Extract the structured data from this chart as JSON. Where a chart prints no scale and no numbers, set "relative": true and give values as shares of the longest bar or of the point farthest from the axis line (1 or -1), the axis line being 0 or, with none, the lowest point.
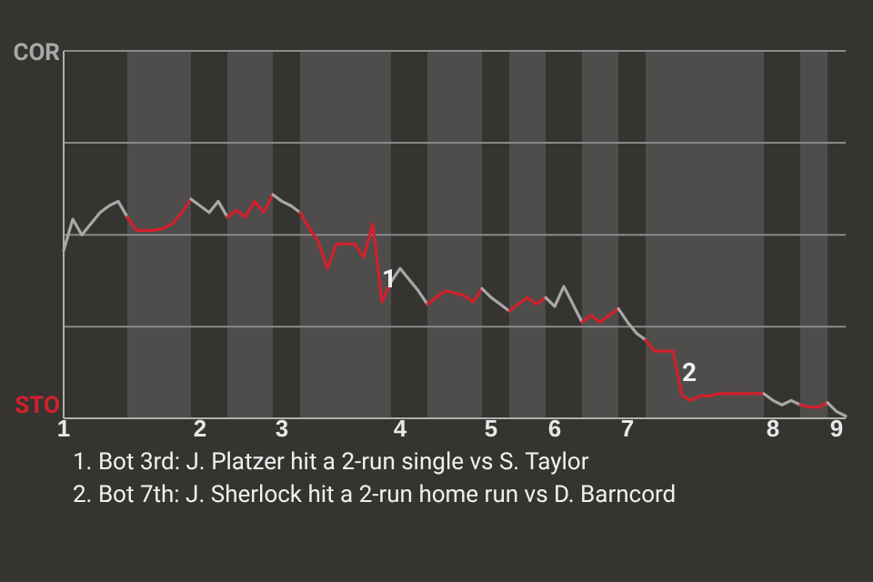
{
  "chart_data": {
    "type": "line",
    "relative": true,
    "categories": [
      "1",
      null,
      null,
      null,
      null,
      null,
      null,
      null,
      null,
      null,
      null,
      null,
      null,
      null,
      null,
      "2",
      null,
      null,
      null,
      null,
      null,
      null,
      null,
      null,
      "3",
      null,
      null,
      null,
      null,
      null,
      null,
      null,
      null,
      null,
      null,
      null,
      null,
      "4",
      null,
      null,
      null,
      null,
      null,
      null,
      null,
      null,
      null,
      "5",
      null,
      null,
      null,
      null,
      null,
      null,
      "6",
      null,
      null,
      null,
      null,
      null,
      null,
      null,
      "7",
      null,
      null,
      null,
      null,
      null,
      null,
      null,
      null,
      null,
      null,
      null,
      null,
      null,
      null,
      null,
      "8",
      null,
      null,
      null,
      null,
      null,
      null,
      "9",
      null
    ],
    "ref_lines": [
      {
        "axis": "y",
        "value": 0.41,
        "color": "#8a8a8a"
      },
      {
        "axis": "y",
        "value": 0.82,
        "color": "#8a8a8a"
      }
    ],
    "marker": "none",
    "line_style": "solid",
    "series": [
      {
        "color": "#a8a8a8",
        "values": [
          0.75,
          0.89,
          0.82,
          0.87,
          0.92,
          0.95,
          0.97,
          0.9,
          null,
          null,
          null,
          null,
          null,
          null,
          null,
          null,
          null,
          null,
          null,
          null,
          null,
          null,
          null,
          null,
          null,
          null,
          null,
          null,
          null,
          null,
          null,
          null,
          null,
          null,
          null,
          null,
          null,
          null,
          null,
          null,
          null,
          null,
          null,
          null,
          null,
          null,
          null,
          null,
          null,
          null,
          null,
          null,
          null,
          null,
          null,
          null,
          null,
          null,
          null,
          null,
          null,
          null,
          null,
          null,
          null,
          null,
          null,
          null,
          null,
          null,
          null,
          null,
          null,
          null,
          null,
          null,
          null,
          null,
          null,
          null,
          null,
          null,
          null,
          null,
          null,
          null,
          null
        ]
      },
      {
        "color": "#d2202c",
        "values": [
          null,
          null,
          null,
          null,
          null,
          null,
          null,
          0.9,
          0.84,
          0.84,
          0.84,
          0.85,
          0.87,
          0.92,
          0.98,
          null,
          null,
          null,
          null,
          null,
          null,
          null,
          null,
          null,
          null,
          null,
          null,
          null,
          null,
          null,
          null,
          null,
          null,
          null,
          null,
          null,
          null,
          null,
          null,
          null,
          null,
          null,
          null,
          null,
          null,
          null,
          null,
          null,
          null,
          null,
          null,
          null,
          null,
          null,
          null,
          null,
          null,
          null,
          null,
          null,
          null,
          null,
          null,
          null,
          null,
          null,
          null,
          null,
          null,
          null,
          null,
          null,
          null,
          null,
          null,
          null,
          null,
          null,
          null,
          null,
          null,
          null,
          null,
          null,
          null,
          null,
          null
        ]
      },
      {
        "color": "#a8a8a8",
        "values": [
          null,
          null,
          null,
          null,
          null,
          null,
          null,
          null,
          null,
          null,
          null,
          null,
          null,
          null,
          0.98,
          0.95,
          0.92,
          0.97,
          0.9,
          null,
          null,
          null,
          null,
          null,
          null,
          null,
          null,
          null,
          null,
          null,
          null,
          null,
          null,
          null,
          null,
          null,
          null,
          null,
          null,
          null,
          null,
          null,
          null,
          null,
          null,
          null,
          null,
          null,
          null,
          null,
          null,
          null,
          null,
          null,
          null,
          null,
          null,
          null,
          null,
          null,
          null,
          null,
          null,
          null,
          null,
          null,
          null,
          null,
          null,
          null,
          null,
          null,
          null,
          null,
          null,
          null,
          null,
          null,
          null,
          null,
          null,
          null,
          null,
          null,
          null,
          null,
          null
        ]
      },
      {
        "color": "#d2202c",
        "values": [
          null,
          null,
          null,
          null,
          null,
          null,
          null,
          null,
          null,
          null,
          null,
          null,
          null,
          null,
          null,
          null,
          null,
          null,
          0.9,
          0.93,
          0.9,
          0.97,
          0.92,
          1,
          null,
          null,
          null,
          null,
          null,
          null,
          null,
          null,
          null,
          null,
          null,
          null,
          null,
          null,
          null,
          null,
          null,
          null,
          null,
          null,
          null,
          null,
          null,
          null,
          null,
          null,
          null,
          null,
          null,
          null,
          null,
          null,
          null,
          null,
          null,
          null,
          null,
          null,
          null,
          null,
          null,
          null,
          null,
          null,
          null,
          null,
          null,
          null,
          null,
          null,
          null,
          null,
          null,
          null,
          null,
          null,
          null,
          null,
          null,
          null,
          null,
          null,
          null
        ]
      },
      {
        "color": "#a8a8a8",
        "values": [
          null,
          null,
          null,
          null,
          null,
          null,
          null,
          null,
          null,
          null,
          null,
          null,
          null,
          null,
          null,
          null,
          null,
          null,
          null,
          null,
          null,
          null,
          null,
          1,
          0.97,
          0.95,
          0.92,
          null,
          null,
          null,
          null,
          null,
          null,
          null,
          null,
          null,
          null,
          null,
          null,
          null,
          null,
          null,
          null,
          null,
          null,
          null,
          null,
          null,
          null,
          null,
          null,
          null,
          null,
          null,
          null,
          null,
          null,
          null,
          null,
          null,
          null,
          null,
          null,
          null,
          null,
          null,
          null,
          null,
          null,
          null,
          null,
          null,
          null,
          null,
          null,
          null,
          null,
          null,
          null,
          null,
          null,
          null,
          null,
          null,
          null,
          null,
          null
        ]
      },
      {
        "color": "#d2202c",
        "values": [
          null,
          null,
          null,
          null,
          null,
          null,
          null,
          null,
          null,
          null,
          null,
          null,
          null,
          null,
          null,
          null,
          null,
          null,
          null,
          null,
          null,
          null,
          null,
          null,
          null,
          null,
          0.92,
          0.85,
          0.79,
          0.67,
          0.78,
          0.78,
          0.78,
          0.72,
          0.87,
          0.52,
          0.61,
          null,
          null,
          null,
          null,
          null,
          null,
          null,
          null,
          null,
          null,
          null,
          null,
          null,
          null,
          null,
          null,
          null,
          null,
          null,
          null,
          null,
          null,
          null,
          null,
          null,
          null,
          null,
          null,
          null,
          null,
          null,
          null,
          null,
          null,
          null,
          null,
          null,
          null,
          null,
          null,
          null,
          null,
          null,
          null,
          null,
          null,
          null,
          null,
          null,
          null
        ]
      },
      {
        "color": "#a8a8a8",
        "values": [
          null,
          null,
          null,
          null,
          null,
          null,
          null,
          null,
          null,
          null,
          null,
          null,
          null,
          null,
          null,
          null,
          null,
          null,
          null,
          null,
          null,
          null,
          null,
          null,
          null,
          null,
          null,
          null,
          null,
          null,
          null,
          null,
          null,
          null,
          null,
          null,
          0.61,
          0.67,
          0.62,
          0.57,
          0.51,
          null,
          null,
          null,
          null,
          null,
          null,
          null,
          null,
          null,
          null,
          null,
          null,
          null,
          null,
          null,
          null,
          null,
          null,
          null,
          null,
          null,
          null,
          null,
          null,
          null,
          null,
          null,
          null,
          null,
          null,
          null,
          null,
          null,
          null,
          null,
          null,
          null,
          null,
          null,
          null,
          null,
          null,
          null,
          null,
          null,
          null
        ]
      },
      {
        "color": "#d2202c",
        "values": [
          null,
          null,
          null,
          null,
          null,
          null,
          null,
          null,
          null,
          null,
          null,
          null,
          null,
          null,
          null,
          null,
          null,
          null,
          null,
          null,
          null,
          null,
          null,
          null,
          null,
          null,
          null,
          null,
          null,
          null,
          null,
          null,
          null,
          null,
          null,
          null,
          null,
          null,
          null,
          null,
          0.51,
          0.54,
          0.57,
          0.56,
          0.55,
          0.52,
          0.58,
          null,
          null,
          null,
          null,
          null,
          null,
          null,
          null,
          null,
          null,
          null,
          null,
          null,
          null,
          null,
          null,
          null,
          null,
          null,
          null,
          null,
          null,
          null,
          null,
          null,
          null,
          null,
          null,
          null,
          null,
          null,
          null,
          null,
          null,
          null,
          null,
          null,
          null,
          null,
          null
        ]
      },
      {
        "color": "#a8a8a8",
        "values": [
          null,
          null,
          null,
          null,
          null,
          null,
          null,
          null,
          null,
          null,
          null,
          null,
          null,
          null,
          null,
          null,
          null,
          null,
          null,
          null,
          null,
          null,
          null,
          null,
          null,
          null,
          null,
          null,
          null,
          null,
          null,
          null,
          null,
          null,
          null,
          null,
          null,
          null,
          null,
          null,
          null,
          null,
          null,
          null,
          null,
          null,
          0.58,
          0.54,
          0.51,
          0.48,
          null,
          null,
          null,
          null,
          null,
          null,
          null,
          null,
          null,
          null,
          null,
          null,
          null,
          null,
          null,
          null,
          null,
          null,
          null,
          null,
          null,
          null,
          null,
          null,
          null,
          null,
          null,
          null,
          null,
          null,
          null,
          null,
          null,
          null,
          null,
          null,
          null
        ]
      },
      {
        "color": "#d2202c",
        "values": [
          null,
          null,
          null,
          null,
          null,
          null,
          null,
          null,
          null,
          null,
          null,
          null,
          null,
          null,
          null,
          null,
          null,
          null,
          null,
          null,
          null,
          null,
          null,
          null,
          null,
          null,
          null,
          null,
          null,
          null,
          null,
          null,
          null,
          null,
          null,
          null,
          null,
          null,
          null,
          null,
          null,
          null,
          null,
          null,
          null,
          null,
          null,
          null,
          null,
          0.48,
          0.51,
          0.54,
          0.51,
          0.54,
          null,
          null,
          null,
          null,
          null,
          null,
          null,
          null,
          null,
          null,
          null,
          null,
          null,
          null,
          null,
          null,
          null,
          null,
          null,
          null,
          null,
          null,
          null,
          null,
          null,
          null,
          null,
          null,
          null,
          null,
          null,
          null,
          null
        ]
      },
      {
        "color": "#a8a8a8",
        "values": [
          null,
          null,
          null,
          null,
          null,
          null,
          null,
          null,
          null,
          null,
          null,
          null,
          null,
          null,
          null,
          null,
          null,
          null,
          null,
          null,
          null,
          null,
          null,
          null,
          null,
          null,
          null,
          null,
          null,
          null,
          null,
          null,
          null,
          null,
          null,
          null,
          null,
          null,
          null,
          null,
          null,
          null,
          null,
          null,
          null,
          null,
          null,
          null,
          null,
          null,
          null,
          null,
          null,
          0.54,
          0.5,
          0.59,
          0.51,
          0.43,
          null,
          null,
          null,
          null,
          null,
          null,
          null,
          null,
          null,
          null,
          null,
          null,
          null,
          null,
          null,
          null,
          null,
          null,
          null,
          null,
          null,
          null,
          null,
          null,
          null,
          null,
          null,
          null,
          null
        ]
      },
      {
        "color": "#d2202c",
        "values": [
          null,
          null,
          null,
          null,
          null,
          null,
          null,
          null,
          null,
          null,
          null,
          null,
          null,
          null,
          null,
          null,
          null,
          null,
          null,
          null,
          null,
          null,
          null,
          null,
          null,
          null,
          null,
          null,
          null,
          null,
          null,
          null,
          null,
          null,
          null,
          null,
          null,
          null,
          null,
          null,
          null,
          null,
          null,
          null,
          null,
          null,
          null,
          null,
          null,
          null,
          null,
          null,
          null,
          null,
          null,
          null,
          null,
          0.43,
          0.46,
          0.43,
          0.46,
          0.49,
          null,
          null,
          null,
          null,
          null,
          null,
          null,
          null,
          null,
          null,
          null,
          null,
          null,
          null,
          null,
          null,
          null,
          null,
          null,
          null,
          null,
          null,
          null,
          null,
          null
        ]
      },
      {
        "color": "#a8a8a8",
        "values": [
          null,
          null,
          null,
          null,
          null,
          null,
          null,
          null,
          null,
          null,
          null,
          null,
          null,
          null,
          null,
          null,
          null,
          null,
          null,
          null,
          null,
          null,
          null,
          null,
          null,
          null,
          null,
          null,
          null,
          null,
          null,
          null,
          null,
          null,
          null,
          null,
          null,
          null,
          null,
          null,
          null,
          null,
          null,
          null,
          null,
          null,
          null,
          null,
          null,
          null,
          null,
          null,
          null,
          null,
          null,
          null,
          null,
          null,
          null,
          null,
          null,
          0.49,
          0.43,
          0.38,
          0.35,
          null,
          null,
          null,
          null,
          null,
          null,
          null,
          null,
          null,
          null,
          null,
          null,
          null,
          null,
          null,
          null,
          null,
          null,
          null,
          null,
          null,
          null
        ]
      },
      {
        "color": "#d2202c",
        "values": [
          null,
          null,
          null,
          null,
          null,
          null,
          null,
          null,
          null,
          null,
          null,
          null,
          null,
          null,
          null,
          null,
          null,
          null,
          null,
          null,
          null,
          null,
          null,
          null,
          null,
          null,
          null,
          null,
          null,
          null,
          null,
          null,
          null,
          null,
          null,
          null,
          null,
          null,
          null,
          null,
          null,
          null,
          null,
          null,
          null,
          null,
          null,
          null,
          null,
          null,
          null,
          null,
          null,
          null,
          null,
          null,
          null,
          null,
          null,
          null,
          null,
          null,
          null,
          null,
          0.35,
          0.3,
          0.3,
          0.3,
          0.1,
          0.08,
          0.1,
          0.1,
          0.11,
          0.11,
          0.11,
          0.11,
          0.11,
          0.11,
          null,
          null,
          null,
          null,
          null,
          null,
          null,
          null,
          null
        ]
      },
      {
        "color": "#a8a8a8",
        "values": [
          null,
          null,
          null,
          null,
          null,
          null,
          null,
          null,
          null,
          null,
          null,
          null,
          null,
          null,
          null,
          null,
          null,
          null,
          null,
          null,
          null,
          null,
          null,
          null,
          null,
          null,
          null,
          null,
          null,
          null,
          null,
          null,
          null,
          null,
          null,
          null,
          null,
          null,
          null,
          null,
          null,
          null,
          null,
          null,
          null,
          null,
          null,
          null,
          null,
          null,
          null,
          null,
          null,
          null,
          null,
          null,
          null,
          null,
          null,
          null,
          null,
          null,
          null,
          null,
          null,
          null,
          null,
          null,
          null,
          null,
          null,
          null,
          null,
          null,
          null,
          null,
          null,
          0.11,
          0.08,
          0.06,
          0.08,
          0.06,
          null,
          null,
          null,
          null,
          null
        ]
      },
      {
        "color": "#d2202c",
        "values": [
          null,
          null,
          null,
          null,
          null,
          null,
          null,
          null,
          null,
          null,
          null,
          null,
          null,
          null,
          null,
          null,
          null,
          null,
          null,
          null,
          null,
          null,
          null,
          null,
          null,
          null,
          null,
          null,
          null,
          null,
          null,
          null,
          null,
          null,
          null,
          null,
          null,
          null,
          null,
          null,
          null,
          null,
          null,
          null,
          null,
          null,
          null,
          null,
          null,
          null,
          null,
          null,
          null,
          null,
          null,
          null,
          null,
          null,
          null,
          null,
          null,
          null,
          null,
          null,
          null,
          null,
          null,
          null,
          null,
          null,
          null,
          null,
          null,
          null,
          null,
          null,
          null,
          null,
          null,
          null,
          null,
          0.06,
          0.05,
          0.05,
          0.07,
          null,
          null
        ]
      },
      {
        "color": "#a8a8a8",
        "values": [
          null,
          null,
          null,
          null,
          null,
          null,
          null,
          null,
          null,
          null,
          null,
          null,
          null,
          null,
          null,
          null,
          null,
          null,
          null,
          null,
          null,
          null,
          null,
          null,
          null,
          null,
          null,
          null,
          null,
          null,
          null,
          null,
          null,
          null,
          null,
          null,
          null,
          null,
          null,
          null,
          null,
          null,
          null,
          null,
          null,
          null,
          null,
          null,
          null,
          null,
          null,
          null,
          null,
          null,
          null,
          null,
          null,
          null,
          null,
          null,
          null,
          null,
          null,
          null,
          null,
          null,
          null,
          null,
          null,
          null,
          null,
          null,
          null,
          null,
          null,
          null,
          null,
          null,
          null,
          null,
          null,
          null,
          null,
          null,
          0.07,
          0.03,
          0.01
        ]
      }
    ],
    "annotations": [
      "COR",
      "STO",
      {
        "text": "1",
        "y": 0.52
      },
      {
        "text": "2",
        "y": 0.1
      },
      "1. Bot 3rd: J. Platzer hit a 2-run single vs S. Taylor",
      "2. Bot 7th: J. Sherlock hit a 2-run home run vs D. Barncord"
    ]
  }
}
